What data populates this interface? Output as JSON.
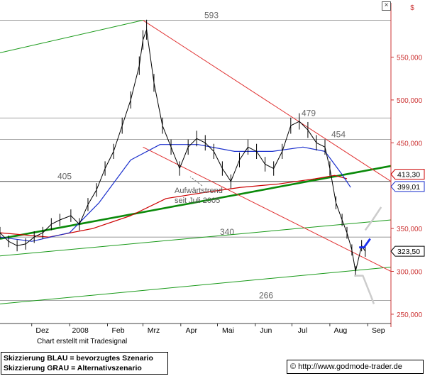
{
  "chart_data": {
    "type": "line",
    "price_series": [
      [
        "2007-11-05",
        345
      ],
      [
        "2007-11-12",
        335
      ],
      [
        "2007-11-19",
        330
      ],
      [
        "2007-11-26",
        332
      ],
      [
        "2007-12-03",
        340
      ],
      [
        "2007-12-10",
        345
      ],
      [
        "2007-12-17",
        355
      ],
      [
        "2007-12-24",
        360
      ],
      [
        "2008-01-02",
        365
      ],
      [
        "2008-01-09",
        355
      ],
      [
        "2008-01-16",
        378
      ],
      [
        "2008-01-23",
        395
      ],
      [
        "2008-01-30",
        420
      ],
      [
        "2008-02-06",
        440
      ],
      [
        "2008-02-13",
        470
      ],
      [
        "2008-02-20",
        500
      ],
      [
        "2008-02-27",
        540
      ],
      [
        "2008-03-01",
        570
      ],
      [
        "2008-03-04",
        582
      ],
      [
        "2008-03-10",
        520
      ],
      [
        "2008-03-17",
        470
      ],
      [
        "2008-03-24",
        445
      ],
      [
        "2008-03-31",
        420
      ],
      [
        "2008-04-07",
        445
      ],
      [
        "2008-04-14",
        455
      ],
      [
        "2008-04-21",
        450
      ],
      [
        "2008-04-28",
        440
      ],
      [
        "2008-05-05",
        420
      ],
      [
        "2008-05-12",
        405
      ],
      [
        "2008-05-19",
        430
      ],
      [
        "2008-05-26",
        445
      ],
      [
        "2008-06-02",
        440
      ],
      [
        "2008-06-09",
        425
      ],
      [
        "2008-06-16",
        420
      ],
      [
        "2008-06-23",
        440
      ],
      [
        "2008-06-30",
        470
      ],
      [
        "2008-07-07",
        475
      ],
      [
        "2008-07-14",
        465
      ],
      [
        "2008-07-21",
        450
      ],
      [
        "2008-07-28",
        445
      ],
      [
        "2008-08-01",
        420
      ],
      [
        "2008-08-06",
        380
      ],
      [
        "2008-08-11",
        360
      ],
      [
        "2008-08-15",
        345
      ],
      [
        "2008-08-19",
        325
      ],
      [
        "2008-08-22",
        300
      ],
      [
        "2008-08-27",
        330
      ],
      [
        "2008-08-30",
        323.5
      ]
    ],
    "ma_blue": [
      [
        "2007-11-05",
        340
      ],
      [
        "2007-12-01",
        335
      ],
      [
        "2008-01-01",
        345
      ],
      [
        "2008-01-25",
        380
      ],
      [
        "2008-02-20",
        430
      ],
      [
        "2008-03-15",
        448
      ],
      [
        "2008-04-15",
        448
      ],
      [
        "2008-05-15",
        440
      ],
      [
        "2008-06-15",
        440
      ],
      [
        "2008-07-10",
        445
      ],
      [
        "2008-07-28",
        440
      ],
      [
        "2008-08-10",
        415
      ],
      [
        "2008-08-18",
        398
      ]
    ],
    "ma_red": [
      [
        "2007-11-05",
        345
      ],
      [
        "2007-12-15",
        340
      ],
      [
        "2008-01-20",
        350
      ],
      [
        "2008-02-20",
        365
      ],
      [
        "2008-03-20",
        385
      ],
      [
        "2008-04-20",
        392
      ],
      [
        "2008-05-20",
        398
      ],
      [
        "2008-06-20",
        402
      ],
      [
        "2008-07-20",
        408
      ],
      [
        "2008-08-05",
        412
      ],
      [
        "2008-08-15",
        408
      ]
    ],
    "scenario_blue": [
      [
        "2008-08-25",
        328
      ],
      [
        "2008-08-29",
        328
      ],
      [
        "2008-09-03",
        338
      ]
    ],
    "scenario_grey_up": [
      [
        "2008-08-30",
        348
      ],
      [
        "2008-09-05",
        360
      ],
      [
        "2008-09-12",
        375
      ]
    ],
    "scenario_grey_down": [
      [
        "2008-08-21",
        295
      ],
      [
        "2008-08-28",
        295
      ],
      [
        "2008-09-04",
        270
      ],
      [
        "2008-09-06",
        262
      ]
    ],
    "levels": [
      {
        "value": 593,
        "label": "593"
      },
      {
        "value": 479,
        "label": "479"
      },
      {
        "value": 454,
        "label": "454"
      },
      {
        "value": 405,
        "label": "405"
      },
      {
        "value": 340,
        "label": "340"
      },
      {
        "value": 266,
        "label": "266"
      }
    ],
    "trendlines": [
      {
        "kind": "uptrend_main",
        "from": [
          "2007-11-05",
          338
        ],
        "to": [
          "2008-09-20",
          423
        ]
      },
      {
        "kind": "channel_upper",
        "from": [
          "2007-11-05",
          555
        ],
        "to": [
          "2008-03-01",
          593
        ]
      },
      {
        "kind": "channel_mid",
        "from": [
          "2007-11-05",
          318
        ],
        "to": [
          "2008-09-20",
          360
        ]
      },
      {
        "kind": "channel_lower",
        "from": [
          "2007-11-05",
          262
        ],
        "to": [
          "2008-09-20",
          305
        ]
      },
      {
        "kind": "down_upper",
        "from": [
          "2008-03-01",
          593
        ],
        "to": [
          "2008-09-20",
          405
        ]
      },
      {
        "kind": "down_lower",
        "from": [
          "2008-03-01",
          445
        ],
        "to": [
          "2008-09-20",
          300
        ]
      }
    ],
    "price_tags": [
      {
        "value": 413.3,
        "label": "413,30",
        "style": "red-outline"
      },
      {
        "value": 399.01,
        "label": "399,01",
        "style": "blue-outline"
      },
      {
        "value": 323.5,
        "label": "323,50",
        "style": "black-outline"
      }
    ],
    "y_ticks": [
      {
        "value": 550,
        "label": "550,000"
      },
      {
        "value": 500,
        "label": "500,000"
      },
      {
        "value": 450,
        "label": "450,000"
      },
      {
        "value": 350,
        "label": "350,000"
      },
      {
        "value": 300,
        "label": "300,000"
      },
      {
        "value": 250,
        "label": "250,000"
      }
    ],
    "y_axis_unit": "$",
    "x_ticks": [
      {
        "date": "2007-12-01",
        "label": "Dez"
      },
      {
        "date": "2008-01-01",
        "label": "2008"
      },
      {
        "date": "2008-02-01",
        "label": "Feb"
      },
      {
        "date": "2008-03-01",
        "label": "Mrz"
      },
      {
        "date": "2008-04-01",
        "label": "Apr"
      },
      {
        "date": "2008-05-01",
        "label": "Mai"
      },
      {
        "date": "2008-06-01",
        "label": "Jun"
      },
      {
        "date": "2008-07-01",
        "label": "Jul"
      },
      {
        "date": "2008-08-01",
        "label": "Aug"
      },
      {
        "date": "2008-09-01",
        "label": "Sep"
      }
    ],
    "annotation": {
      "line1": "Aufwärtstrend",
      "line2": "seit Juli 2005"
    },
    "xlim": [
      "2007-11-05",
      "2008-09-20"
    ],
    "ylim": [
      240,
      610
    ],
    "grid": false,
    "colors": {
      "price": "#000000",
      "ma_blue": "#1a2fcc",
      "ma_red": "#cc0000",
      "uptrend": "#0a8a0a",
      "channel": "#1a9a1a",
      "down": "#e03030",
      "level": "#888888",
      "scenario_blue": "#1a2fee",
      "scenario_grey": "#cccccc",
      "axis": "#cc3333"
    }
  },
  "credit": "Chart erstellt mit Tradesignal",
  "legend": {
    "line1": "Skizzierung BLAU = bevorzugtes Szenario",
    "line2": "Skizzierung GRAU = Alternativszenario"
  },
  "source_url": "http://www.godmode-trader.de",
  "close_button": "×"
}
